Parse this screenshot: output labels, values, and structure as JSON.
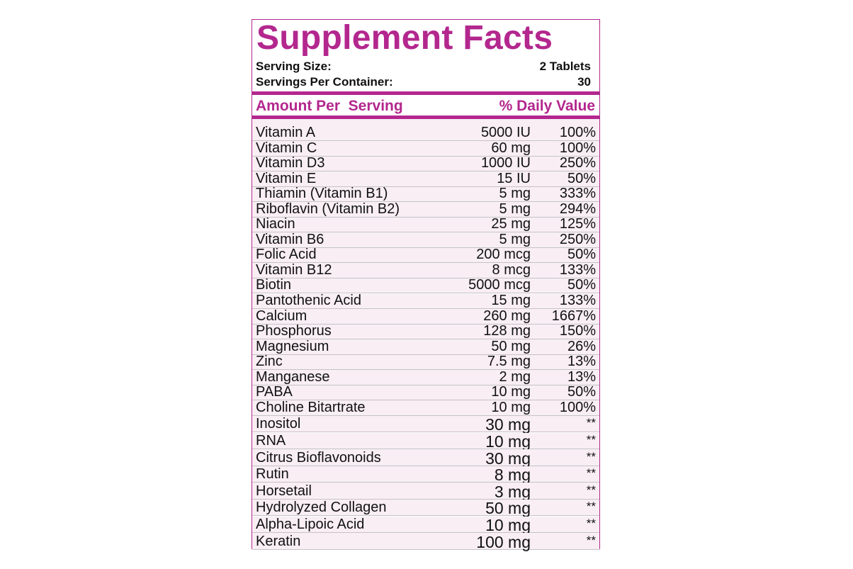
{
  "title": "Supplement Facts",
  "serving": {
    "size_label": "Serving Size:",
    "size": "2 Tablets",
    "per_container_label": "Servings Per Container:",
    "per_container": "30"
  },
  "table": {
    "header": [
      "Amount Per  Serving",
      "% Daily Value"
    ],
    "rows": [
      [
        "Vitamin A",
        "5000 IU",
        "100%"
      ],
      [
        "Vitamin C",
        "60 mg",
        "100%"
      ],
      [
        "Vitamin D3",
        "1000 IU",
        "250%"
      ],
      [
        "Vitamin E",
        "15 IU",
        "50%"
      ],
      [
        "Thiamin (Vitamin B1)",
        "5 mg",
        "333%"
      ],
      [
        "Riboflavin (Vitamin B2)",
        "5 mg",
        "294%"
      ],
      [
        "Niacin",
        "25 mg",
        "125%"
      ],
      [
        "Vitamin B6",
        "5 mg",
        "250%"
      ],
      [
        "Folic Acid",
        "200 mcg",
        "50%"
      ],
      [
        "Vitamin B12",
        "8 mcg",
        "133%"
      ],
      [
        "Biotin",
        "5000 mcg",
        "50%"
      ],
      [
        "Pantothenic Acid",
        "15 mg",
        "133%"
      ],
      [
        "Calcium",
        "260 mg",
        "1667%"
      ],
      [
        "Phosphorus",
        "128 mg",
        "150%"
      ],
      [
        "Magnesium",
        "50 mg",
        "26%"
      ],
      [
        "Zinc",
        "7.5 mg",
        "13%"
      ],
      [
        "Manganese",
        "2 mg",
        "13%"
      ],
      [
        "PABA",
        "10 mg",
        "50%"
      ],
      [
        "Choline Bitartrate",
        "10 mg",
        "100%"
      ],
      [
        "Inositol",
        "30 mg",
        "**"
      ],
      [
        "RNA",
        "10 mg",
        "**"
      ],
      [
        "Citrus Bioflavonoids",
        "30 mg",
        "**"
      ],
      [
        "Rutin",
        "8 mg",
        "**"
      ],
      [
        "Horsetail",
        "3 mg",
        "**"
      ],
      [
        "Hydrolyzed Collagen",
        "50 mg",
        "**"
      ],
      [
        "Alpha-Lipoic Acid",
        "10 mg",
        "**"
      ],
      [
        "Keratin",
        "100 mg",
        "**"
      ]
    ]
  }
}
